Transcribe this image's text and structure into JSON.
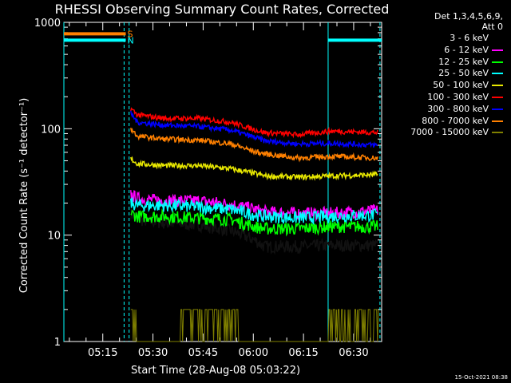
{
  "chart_data": {
    "type": "line",
    "title": "RHESSI Observing Summary Count Rates, Corrected",
    "xlabel": "Start Time (28-Aug-08 05:03:22)",
    "ylabel": "Corrected Count Rate (s⁻¹ detector⁻¹)",
    "y_scale": "log",
    "ylim": [
      1,
      1000
    ],
    "xlim_minutes": [
      0,
      95
    ],
    "x_ticks": [
      "05:15",
      "05:30",
      "05:45",
      "06:00",
      "06:15",
      "06:30"
    ],
    "y_ticks": [
      "1",
      "10",
      "100",
      "1000"
    ],
    "legend_header": [
      "Det 1,3,4,5,6,9,",
      "Att 0"
    ],
    "series": [
      {
        "name": "3 - 6 keV",
        "color": "#000000",
        "x": [
          20,
          22,
          30,
          40,
          50,
          57,
          60,
          70,
          80,
          94
        ],
        "y": [
          16,
          14,
          13,
          12.5,
          11,
          9,
          7.8,
          7.8,
          8,
          8
        ]
      },
      {
        "name": "6 - 12 keV",
        "color": "#ff00ff",
        "x": [
          20,
          22,
          30,
          40,
          50,
          57,
          60,
          70,
          80,
          94
        ],
        "y": [
          24,
          22,
          21,
          21,
          19.5,
          17.5,
          16.5,
          16,
          16,
          17
        ]
      },
      {
        "name": "12 - 25 keV",
        "color": "#00ff00",
        "x": [
          20,
          22,
          30,
          40,
          50,
          57,
          60,
          70,
          80,
          94
        ],
        "y": [
          16,
          15,
          15,
          14.5,
          14,
          12,
          11.5,
          11.5,
          12,
          12
        ]
      },
      {
        "name": "25 - 50 keV",
        "color": "#00ffff",
        "x": [
          20,
          22,
          30,
          40,
          50,
          57,
          60,
          70,
          80,
          94
        ],
        "y": [
          20,
          19,
          19,
          18.5,
          17.5,
          15.5,
          15,
          14.5,
          15,
          15.5
        ]
      },
      {
        "name": "50 - 100 keV",
        "color": "#e8e800",
        "x": [
          20,
          22,
          30,
          40,
          50,
          57,
          60,
          70,
          80,
          94
        ],
        "y": [
          52,
          47,
          45,
          45,
          42,
          38,
          36,
          35,
          36,
          37
        ]
      },
      {
        "name": "100 - 300 keV",
        "color": "#ff0000",
        "x": [
          20,
          22,
          30,
          40,
          50,
          57,
          60,
          70,
          80,
          94
        ],
        "y": [
          155,
          135,
          125,
          125,
          115,
          98,
          92,
          88,
          95,
          92
        ]
      },
      {
        "name": "300 - 800 keV",
        "color": "#0000ff",
        "x": [
          20,
          22,
          30,
          40,
          50,
          57,
          60,
          70,
          80,
          94
        ],
        "y": [
          140,
          115,
          108,
          105,
          97,
          83,
          77,
          72,
          73,
          70
        ]
      },
      {
        "name": "800 - 7000 keV",
        "color": "#ff8000",
        "x": [
          20,
          22,
          30,
          40,
          50,
          57,
          60,
          70,
          80,
          94
        ],
        "y": [
          100,
          85,
          80,
          78,
          72,
          61,
          58,
          53,
          55,
          53
        ]
      },
      {
        "name": "7000 - 15000 keV",
        "color": "#808000",
        "x": [
          20,
          22,
          30,
          40,
          50,
          57,
          60,
          70,
          80,
          94
        ],
        "y": [
          1,
          1,
          1,
          1,
          1,
          1,
          1,
          1,
          1,
          1
        ]
      }
    ],
    "flag_bars": [
      {
        "label": "S",
        "color": "#ff8000",
        "y": 780,
        "x": [
          0,
          18.5
        ]
      },
      {
        "label": "N",
        "color": "#00ffff",
        "y": 680,
        "x": [
          0,
          18.5
        ]
      },
      {
        "label": "",
        "color": "#00ffff",
        "y": 680,
        "x": [
          79,
          95
        ]
      }
    ]
  },
  "timestamp": "15-Oct-2021 08:38"
}
